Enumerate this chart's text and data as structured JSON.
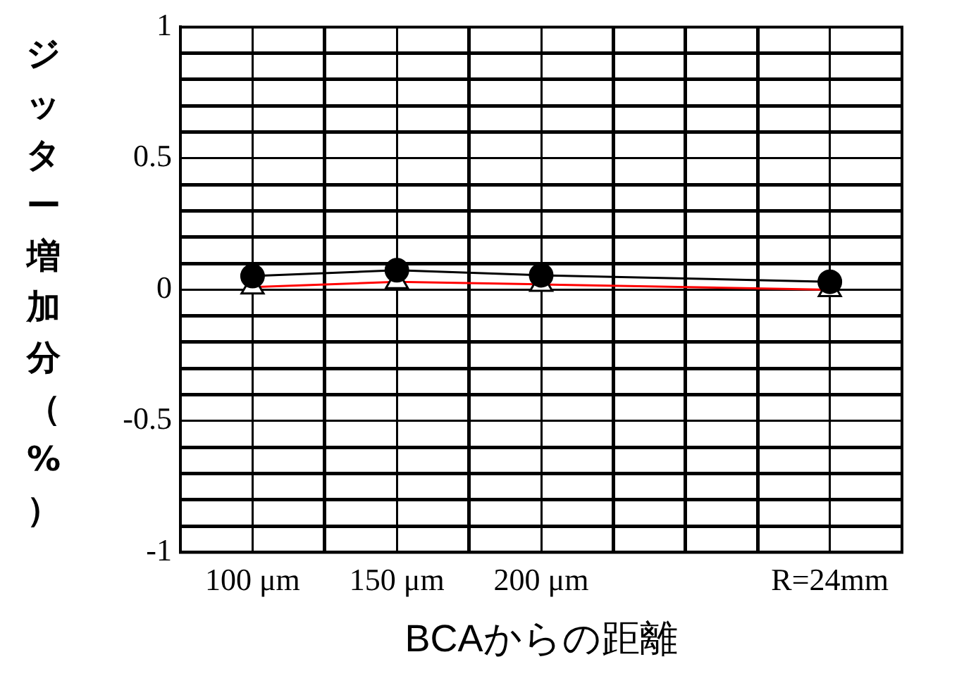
{
  "chart_data": {
    "type": "line",
    "xlabel": "BCAからの距離",
    "ylabel": "ジッター増加分（%）",
    "categories": [
      "100 μm",
      null,
      "150 μm",
      null,
      "200 μm",
      null,
      null,
      null,
      "R=24mm"
    ],
    "series": [
      {
        "color": "#000000",
        "marker": "circle",
        "values": [
          0.052,
          null,
          0.074,
          null,
          0.055,
          null,
          null,
          null,
          0.03
        ]
      },
      {
        "color": "#ff0000",
        "marker": "triangle",
        "values": [
          0.01,
          null,
          0.03,
          null,
          0.02,
          null,
          null,
          null,
          0.0
        ]
      }
    ],
    "ylim": [
      -1,
      1
    ],
    "yticks": [
      -1,
      {
        "value": -0.9,
        "label": null
      },
      {
        "value": -0.8,
        "label": null
      },
      {
        "value": -0.7,
        "label": null
      },
      {
        "value": -0.6,
        "label": null
      },
      -0.5,
      {
        "value": -0.4,
        "label": null
      },
      {
        "value": -0.3,
        "label": null
      },
      {
        "value": -0.2,
        "label": null
      },
      {
        "value": -0.1,
        "label": null
      },
      0,
      {
        "value": 0.1,
        "label": null
      },
      {
        "value": 0.2,
        "label": null
      },
      {
        "value": 0.3,
        "label": null
      },
      {
        "value": 0.4,
        "label": null
      },
      0.5,
      {
        "value": 0.6,
        "label": null
      },
      {
        "value": 0.7,
        "label": null
      },
      {
        "value": 0.8,
        "label": null
      },
      {
        "value": 0.9,
        "label": null
      },
      1
    ],
    "grid": true,
    "line_style": "solid"
  }
}
